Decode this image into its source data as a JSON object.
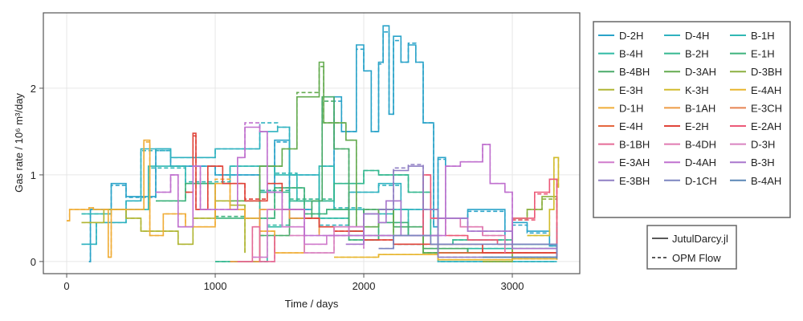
{
  "chart_data": {
    "type": "line",
    "title": "",
    "xlabel": "Time / days",
    "ylabel": "Gas rate / 10⁶ m³/day",
    "xlim": [
      -157,
      3454
    ],
    "ylim": [
      -0.14,
      2.87
    ],
    "xticks": [
      0,
      1000,
      2000,
      3000
    ],
    "yticks": [
      0,
      1,
      2
    ],
    "grid": true,
    "legend_placement": "right",
    "style_legend": [
      {
        "name": "JutulDarcy.jl",
        "dash": "solid"
      },
      {
        "name": "OPM Flow",
        "dash": "dashed"
      }
    ],
    "series": [
      {
        "name": "D-2H",
        "color": "#2aa3c9",
        "x": [
          150,
          160,
          300,
          400,
          600,
          700,
          1000,
          1300,
          1400,
          1500,
          1650,
          1800,
          1850,
          1950,
          2000,
          2050,
          2100,
          2130,
          2170,
          2200,
          2250,
          2300,
          2350,
          2400,
          2470,
          2500,
          2550,
          2700,
          2950,
          3000,
          3100,
          3250,
          3300
        ],
        "jutul": [
          0,
          0.6,
          0.9,
          0.75,
          1.3,
          1.1,
          1.0,
          0.8,
          1.4,
          0.6,
          0.7,
          1.9,
          1.5,
          2.5,
          2.2,
          1.5,
          2.3,
          2.72,
          1.7,
          2.6,
          2.3,
          2.5,
          2.3,
          1.6,
          0.4,
          1.2,
          0.5,
          0.6,
          0.2,
          0.45,
          0.35,
          0.18,
          0.45
        ],
        "opm": [
          0,
          0.6,
          0.88,
          0.74,
          1.28,
          1.1,
          1.0,
          0.82,
          1.38,
          0.6,
          0.7,
          1.85,
          1.5,
          2.45,
          2.2,
          1.5,
          2.28,
          2.65,
          1.7,
          2.55,
          2.3,
          2.52,
          2.3,
          1.6,
          0.4,
          1.18,
          0.5,
          0.58,
          0.2,
          0.42,
          0.33,
          0.18,
          0.4
        ]
      },
      {
        "name": "D-4H",
        "color": "#2fb2c0",
        "x": [
          100,
          200,
          400,
          500,
          700,
          1000,
          1300,
          1420,
          1500,
          1700,
          1900,
          2100,
          2250,
          2400,
          2500,
          3300
        ],
        "jutul": [
          0.2,
          0.45,
          0.7,
          1.3,
          1.2,
          1.3,
          1.5,
          1.55,
          1.0,
          0.4,
          0.8,
          0.9,
          0.6,
          0.3,
          0,
          0
        ],
        "opm": [
          0.2,
          0.45,
          0.7,
          1.28,
          1.2,
          1.3,
          1.6,
          1.55,
          1.0,
          0.42,
          0.8,
          0.88,
          0.6,
          0.3,
          0,
          0
        ]
      },
      {
        "name": "B-1H",
        "color": "#30b8b4",
        "x": [
          100,
          300,
          550,
          800,
          1100,
          1400,
          1550,
          1700,
          1800,
          2000,
          2200,
          2300,
          2500,
          3300
        ],
        "jutul": [
          0.55,
          0.6,
          1.1,
          0.9,
          1.1,
          1.0,
          0.7,
          1.1,
          0.6,
          0.55,
          0.6,
          0.3,
          0.1,
          0.08
        ],
        "opm": [
          0.55,
          0.6,
          1.08,
          0.92,
          1.1,
          1.02,
          0.7,
          1.1,
          0.62,
          0.55,
          0.6,
          0.3,
          0.1,
          0.08
        ]
      },
      {
        "name": "B-4H",
        "color": "#2fbaa5",
        "x": [
          1200,
          1350,
          1500,
          1700,
          1900,
          2200,
          2400,
          2700,
          3000,
          3300
        ],
        "jutul": [
          0,
          0.4,
          0.7,
          0.5,
          0.3,
          0.2,
          0.1,
          0.15,
          0.2,
          0.1
        ],
        "opm": [
          0,
          0.42,
          0.7,
          0.5,
          0.3,
          0.2,
          0.1,
          0.15,
          0.2,
          0.1
        ]
      },
      {
        "name": "B-2H",
        "color": "#35b890",
        "x": [
          1000,
          1300,
          1500,
          1800,
          2000,
          2100,
          2300,
          2450,
          2600,
          3000,
          3300
        ],
        "jutul": [
          0,
          0.8,
          0.7,
          0.9,
          1.05,
          1.0,
          0.8,
          0.2,
          0.25,
          0.2,
          0.05
        ],
        "opm": [
          0,
          0.82,
          0.72,
          0.9,
          1.05,
          1.0,
          0.8,
          0.2,
          0.25,
          0.2,
          0.05
        ]
      },
      {
        "name": "E-1H",
        "color": "#3db27c",
        "x": [
          600,
          800,
          1000,
          1200,
          1400,
          1600,
          1750,
          1900,
          2100,
          2300,
          2500,
          3000,
          3300
        ],
        "jutul": [
          0.7,
          0.9,
          0.5,
          0.5,
          0.85,
          0.55,
          0.6,
          0.25,
          0.45,
          0.3,
          0.1,
          0.15,
          0.1
        ],
        "opm": [
          0.7,
          0.9,
          0.52,
          0.5,
          0.85,
          0.55,
          0.6,
          0.25,
          0.45,
          0.3,
          0.1,
          0.15,
          0.1
        ]
      },
      {
        "name": "B-4BH",
        "color": "#4aab6a",
        "x": [
          1300,
          1500,
          1650,
          1720,
          1800,
          1900,
          2000,
          2200,
          2400,
          2700,
          3300
        ],
        "jutul": [
          0.3,
          0.5,
          0.7,
          1.9,
          1.3,
          0.35,
          0.6,
          0.4,
          0.15,
          0.1,
          0.05
        ],
        "opm": [
          0.3,
          0.5,
          0.7,
          1.85,
          1.3,
          0.35,
          0.6,
          0.4,
          0.15,
          0.1,
          0.05
        ]
      },
      {
        "name": "D-3AH",
        "color": "#64ab4f",
        "x": [
          1100,
          1300,
          1450,
          1550,
          1700,
          1730,
          1800,
          1880,
          1950,
          2100,
          2200,
          2400,
          3300
        ],
        "jutul": [
          0.7,
          1.1,
          1.3,
          1.9,
          2.3,
          1.6,
          1.6,
          1.4,
          0.4,
          0.6,
          0.3,
          0.1,
          0.05
        ],
        "opm": [
          0.7,
          1.1,
          1.3,
          1.95,
          2.25,
          1.6,
          1.6,
          1.4,
          0.4,
          0.6,
          0.3,
          0.1,
          0.05
        ]
      },
      {
        "name": "D-3BH",
        "color": "#8cb040",
        "x": [
          2800,
          3000,
          3100,
          3200,
          3300
        ],
        "jutul": [
          0,
          0.5,
          0.6,
          0.75,
          0.5
        ],
        "opm": [
          0,
          0.48,
          0.6,
          0.72,
          0.5
        ]
      },
      {
        "name": "E-3H",
        "color": "#b0b634",
        "x": [
          100,
          250,
          400,
          500,
          650,
          750,
          850,
          1000,
          1100,
          1200
        ],
        "jutul": [
          0.45,
          0.6,
          0.5,
          0.35,
          0.35,
          0.2,
          0.5,
          0.7,
          0.65,
          0.1
        ],
        "opm": [
          0.45,
          0.6,
          0.5,
          0.35,
          0.35,
          0.2,
          0.5,
          0.7,
          0.65,
          0.1
        ]
      },
      {
        "name": "K-3H",
        "color": "#d2bc2e",
        "x": [
          3100,
          3250,
          3280,
          3310
        ],
        "jutul": [
          0.3,
          0.6,
          1.2,
          0.85
        ],
        "opm": [
          0.3,
          0.6,
          1.2,
          0.85
        ]
      },
      {
        "name": "E-4AH",
        "color": "#e8b62e",
        "x": [
          1800,
          2100,
          2500,
          3000,
          3300
        ],
        "jutul": [
          0.05,
          0.08,
          0.02,
          0.03,
          0.02
        ],
        "opm": [
          0.05,
          0.08,
          0.02,
          0.03,
          0.02
        ]
      },
      {
        "name": "D-1H",
        "color": "#f0ad38",
        "x": [
          0,
          20,
          150,
          180,
          280,
          300,
          400,
          520,
          560,
          650,
          800,
          1000,
          1100,
          1200,
          1300,
          1400,
          1600
        ],
        "jutul": [
          0.47,
          0.6,
          0.62,
          0.6,
          0.05,
          0.6,
          0.6,
          1.4,
          0.3,
          0.55,
          0.4,
          0.9,
          0.6,
          0.5,
          0.35,
          0.1,
          0.2
        ],
        "opm": [
          0.47,
          0.6,
          0.62,
          0.6,
          0.05,
          0.6,
          0.6,
          1.38,
          0.3,
          0.55,
          0.4,
          0.95,
          0.6,
          0.5,
          0.35,
          0.1,
          0.2
        ]
      },
      {
        "name": "B-1AH",
        "color": "#ed9b45",
        "x": [
          1100,
          1300,
          1500,
          1700
        ],
        "jutul": [
          0,
          0.6,
          0.5,
          0.3
        ],
        "opm": [
          0,
          0.6,
          0.5,
          0.3
        ]
      },
      {
        "name": "E-3CH",
        "color": "#e68350",
        "x": [
          2900,
          3300
        ],
        "jutul": [
          0.1,
          0.05
        ],
        "opm": [
          0.1,
          0.05
        ]
      },
      {
        "name": "E-4H",
        "color": "#e5673f",
        "x": [
          2500,
          2800,
          3300
        ],
        "jutul": [
          0.1,
          0.1,
          0.05
        ],
        "opm": [
          0.1,
          0.1,
          0.05
        ]
      },
      {
        "name": "E-2H",
        "color": "#e0443a",
        "x": [
          800,
          850,
          870,
          950,
          1050,
          1200,
          1350,
          1450,
          1600,
          1700,
          1800,
          2000,
          2200,
          2500,
          2800,
          3300
        ],
        "jutul": [
          0.8,
          1.48,
          0.6,
          1.1,
          0.9,
          0.7,
          0.9,
          0.6,
          0.5,
          0.4,
          0.35,
          0.25,
          0.2,
          0.2,
          0.1,
          0.05
        ],
        "opm": [
          0.8,
          1.45,
          0.6,
          1.1,
          0.9,
          0.72,
          0.9,
          0.6,
          0.5,
          0.4,
          0.35,
          0.25,
          0.2,
          0.2,
          0.1,
          0.05
        ]
      },
      {
        "name": "E-2AH",
        "color": "#ec5a78",
        "x": [
          2350,
          2400,
          2450,
          2550,
          2700,
          2900,
          3000,
          3150,
          3250,
          3300
        ],
        "jutul": [
          0.3,
          1.0,
          0.5,
          0.3,
          0.25,
          0.2,
          0.5,
          0.8,
          0.95,
          0.15
        ],
        "opm": [
          0.3,
          1.0,
          0.5,
          0.3,
          0.25,
          0.2,
          0.48,
          0.78,
          0.95,
          0.15
        ]
      },
      {
        "name": "B-1BH",
        "color": "#e56b96",
        "x": [
          1150,
          1250,
          1300,
          1400
        ],
        "jutul": [
          0,
          0.4,
          0,
          0.3
        ],
        "opm": [
          0,
          0.4,
          0,
          0.3
        ]
      },
      {
        "name": "B-4DH",
        "color": "#e07ab0",
        "x": [
          2500,
          2650,
          2800,
          2950
        ],
        "jutul": [
          0.5,
          0.4,
          0.3,
          0.1
        ],
        "opm": [
          0.5,
          0.4,
          0.3,
          0.1
        ]
      },
      {
        "name": "D-3H",
        "color": "#d983c0",
        "x": [
          1500,
          1600,
          1800,
          2000
        ],
        "jutul": [
          0.3,
          0.1,
          0.4,
          0.2
        ],
        "opm": [
          0.3,
          0.1,
          0.4,
          0.2
        ]
      },
      {
        "name": "E-3AH",
        "color": "#d07ccc",
        "x": [
          1250,
          1350,
          1450,
          1600,
          1750,
          1900,
          2000
        ],
        "jutul": [
          0.05,
          0.6,
          0.4,
          0.2,
          0.3,
          0.4,
          0.15
        ],
        "opm": [
          0.05,
          0.6,
          0.4,
          0.2,
          0.3,
          0.4,
          0.15
        ]
      },
      {
        "name": "D-4AH",
        "color": "#c071cf",
        "x": [
          600,
          700,
          750,
          850,
          900,
          1150,
          1200,
          1300,
          1350,
          1450,
          1600,
          2550,
          2650,
          2800,
          2850,
          2950,
          3000
        ],
        "jutul": [
          0.8,
          1.0,
          0.4,
          1.1,
          0.6,
          1.2,
          1.55,
          1.5,
          0.8,
          0.6,
          0.3,
          1.1,
          1.15,
          1.35,
          0.9,
          0.8,
          0.3
        ],
        "opm": [
          0.8,
          1.0,
          0.4,
          1.1,
          0.6,
          1.2,
          1.6,
          1.5,
          0.8,
          0.6,
          0.3,
          1.1,
          1.15,
          1.35,
          0.9,
          0.8,
          0.3
        ]
      },
      {
        "name": "B-3H",
        "color": "#a977cd",
        "x": [
          1880,
          2000,
          2100,
          2150,
          2250,
          2500,
          2700,
          3000,
          3300
        ],
        "jutul": [
          0.2,
          0.55,
          0.45,
          0.7,
          0.3,
          0.5,
          0.35,
          0.15,
          0.1
        ],
        "opm": [
          0.2,
          0.55,
          0.45,
          0.7,
          0.3,
          0.5,
          0.35,
          0.15,
          0.1
        ]
      },
      {
        "name": "E-3BH",
        "color": "#8f7fc4",
        "x": [
          2100,
          2200,
          2300,
          2400,
          2500,
          3300
        ],
        "jutul": [
          0.6,
          1.05,
          1.1,
          0.6,
          0.05,
          0.05
        ],
        "opm": [
          0.6,
          1.08,
          1.12,
          0.6,
          0.05,
          0.05
        ]
      },
      {
        "name": "D-1CH",
        "color": "#7c85c0",
        "x": [
          2100,
          2200,
          2450,
          3300
        ],
        "jutul": [
          0.15,
          0.3,
          0.2,
          0.05
        ],
        "opm": [
          0.15,
          0.3,
          0.2,
          0.05
        ]
      },
      {
        "name": "B-4AH",
        "color": "#5a86b5",
        "x": [
          2800,
          3300
        ],
        "jutul": [
          0.05,
          0.03
        ],
        "opm": [
          0.05,
          0.03
        ]
      }
    ]
  }
}
